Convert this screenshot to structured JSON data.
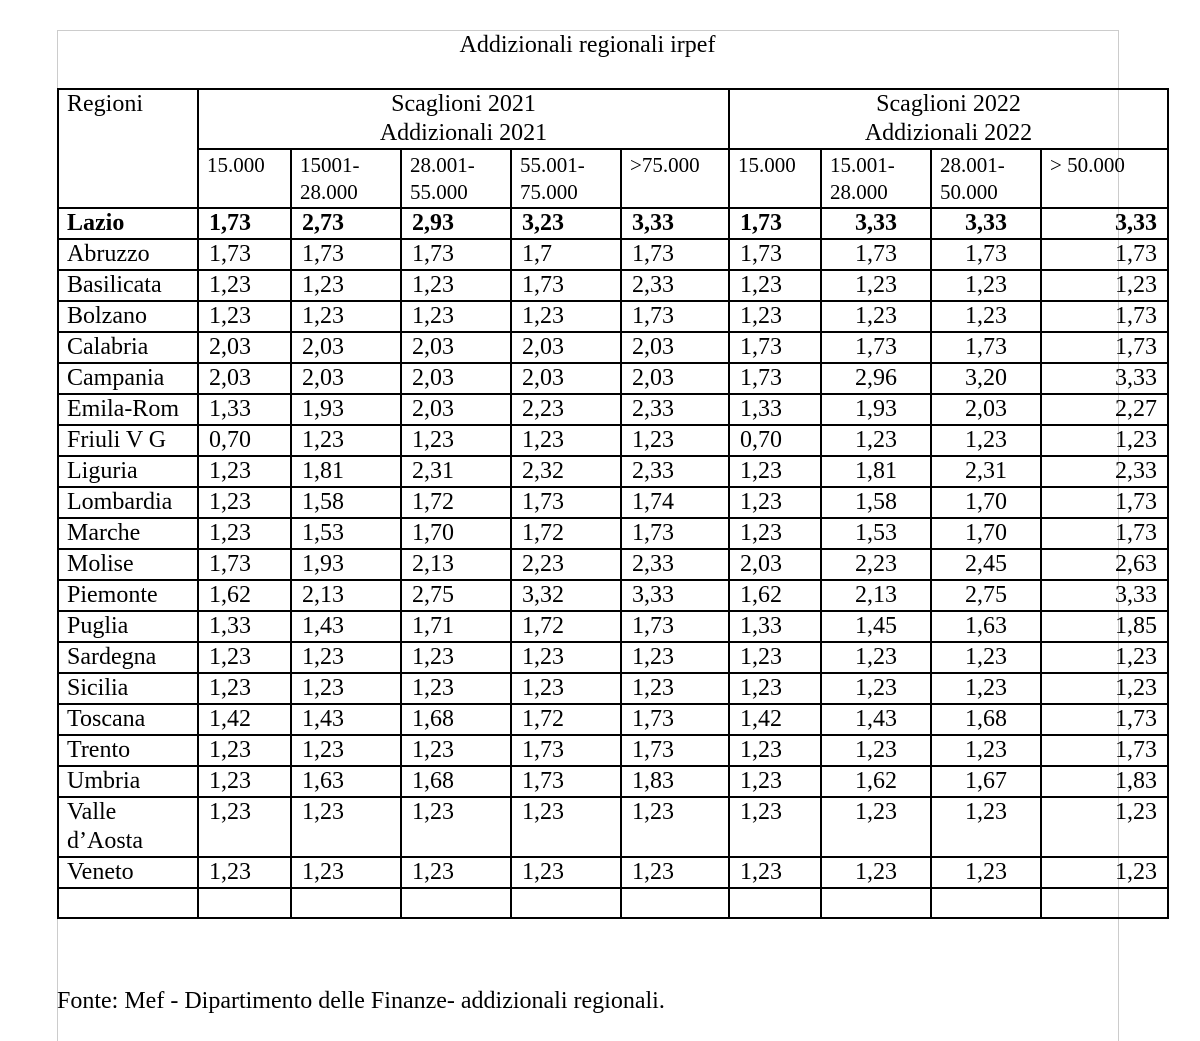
{
  "title": "Addizionali regionali irpef",
  "table": {
    "corner": "Regioni",
    "groups": [
      {
        "title": "Scaglioni 2021",
        "subtitle": "Addizionali 2021",
        "brackets": [
          "15.000",
          "15001-28.000",
          "28.001-55.000",
          "55.001-75.000",
          ">75.000"
        ]
      },
      {
        "title": "Scaglioni 2022",
        "subtitle": "Addizionali 2022",
        "brackets": [
          "15.000",
          "15.001-28.000",
          "28.001-50.000",
          "> 50.000"
        ]
      }
    ],
    "rows": [
      {
        "region": "Lazio",
        "values": [
          "1,73",
          "2,73",
          "2,93",
          "3,23",
          "3,33",
          "1,73",
          "3,33",
          "3,33",
          "3,33"
        ]
      },
      {
        "region": "Abruzzo",
        "values": [
          "1,73",
          "1,73",
          "1,73",
          "1,7",
          "1,73",
          "1,73",
          "1,73",
          "1,73",
          "1,73"
        ]
      },
      {
        "region": "Basilicata",
        "values": [
          "1,23",
          "1,23",
          "1,23",
          "1,73",
          "2,33",
          "1,23",
          "1,23",
          "1,23",
          "1,23"
        ]
      },
      {
        "region": "Bolzano",
        "values": [
          "1,23",
          "1,23",
          "1,23",
          "1,23",
          "1,73",
          "1,23",
          "1,23",
          "1,23",
          "1,73"
        ]
      },
      {
        "region": "Calabria",
        "values": [
          "2,03",
          "2,03",
          "2,03",
          "2,03",
          "2,03",
          "1,73",
          "1,73",
          "1,73",
          "1,73"
        ]
      },
      {
        "region": "Campania",
        "values": [
          "2,03",
          "2,03",
          "2,03",
          "2,03",
          "2,03",
          "1,73",
          "2,96",
          "3,20",
          "3,33"
        ]
      },
      {
        "region": "Emila-Rom",
        "values": [
          "1,33",
          "1,93",
          "2,03",
          "2,23",
          "2,33",
          "1,33",
          "1,93",
          "2,03",
          "2,27"
        ]
      },
      {
        "region": "Friuli V G",
        "values": [
          "0,70",
          "1,23",
          "1,23",
          "1,23",
          "1,23",
          "0,70",
          "1,23",
          "1,23",
          "1,23"
        ]
      },
      {
        "region": "Liguria",
        "values": [
          "1,23",
          "1,81",
          "2,31",
          "2,32",
          "2,33",
          "1,23",
          "1,81",
          "2,31",
          "2,33"
        ]
      },
      {
        "region": "Lombardia",
        "values": [
          "1,23",
          "1,58",
          "1,72",
          "1,73",
          "1,74",
          "1,23",
          "1,58",
          "1,70",
          "1,73"
        ]
      },
      {
        "region": "Marche",
        "values": [
          "1,23",
          "1,53",
          "1,70",
          "1,72",
          "1,73",
          "1,23",
          "1,53",
          "1,70",
          "1,73"
        ]
      },
      {
        "region": "Molise",
        "values": [
          "1,73",
          "1,93",
          "2,13",
          "2,23",
          "2,33",
          "2,03",
          "2,23",
          "2,45",
          "2,63"
        ]
      },
      {
        "region": "Piemonte",
        "values": [
          "1,62",
          "2,13",
          "2,75",
          "3,32",
          "3,33",
          "1,62",
          "2,13",
          "2,75",
          "3,33"
        ]
      },
      {
        "region": "Puglia",
        "values": [
          "1,33",
          "1,43",
          "1,71",
          "1,72",
          "1,73",
          "1,33",
          "1,45",
          "1,63",
          "1,85"
        ]
      },
      {
        "region": "Sardegna",
        "values": [
          "1,23",
          "1,23",
          "1,23",
          "1,23",
          "1,23",
          "1,23",
          "1,23",
          "1,23",
          "1,23"
        ]
      },
      {
        "region": "Sicilia",
        "values": [
          "1,23",
          "1,23",
          "1,23",
          "1,23",
          "1,23",
          "1,23",
          "1,23",
          "1,23",
          "1,23"
        ]
      },
      {
        "region": "Toscana",
        "values": [
          "1,42",
          "1,43",
          "1,68",
          "1,72",
          "1,73",
          "1,42",
          "1,43",
          "1,68",
          "1,73"
        ]
      },
      {
        "region": "Trento",
        "values": [
          "1,23",
          "1,23",
          "1,23",
          "1,73",
          "1,73",
          "1,23",
          "1,23",
          "1,23",
          "1,73"
        ]
      },
      {
        "region": "Umbria",
        "values": [
          "1,23",
          "1,63",
          "1,68",
          "1,73",
          "1,83",
          "1,23",
          "1,62",
          "1,67",
          "1,83"
        ]
      },
      {
        "region": "Valle d’Aosta",
        "values": [
          "1,23",
          "1,23",
          "1,23",
          "1,23",
          "1,23",
          "1,23",
          "1,23",
          "1,23",
          "1,23"
        ]
      },
      {
        "region": "Veneto",
        "values": [
          "1,23",
          "1,23",
          "1,23",
          "1,23",
          "1,23",
          "1,23",
          "1,23",
          "1,23",
          "1,23"
        ]
      }
    ]
  },
  "source": "Fonte: Mef - Dipartimento delle Finanze- addizionali regionali."
}
